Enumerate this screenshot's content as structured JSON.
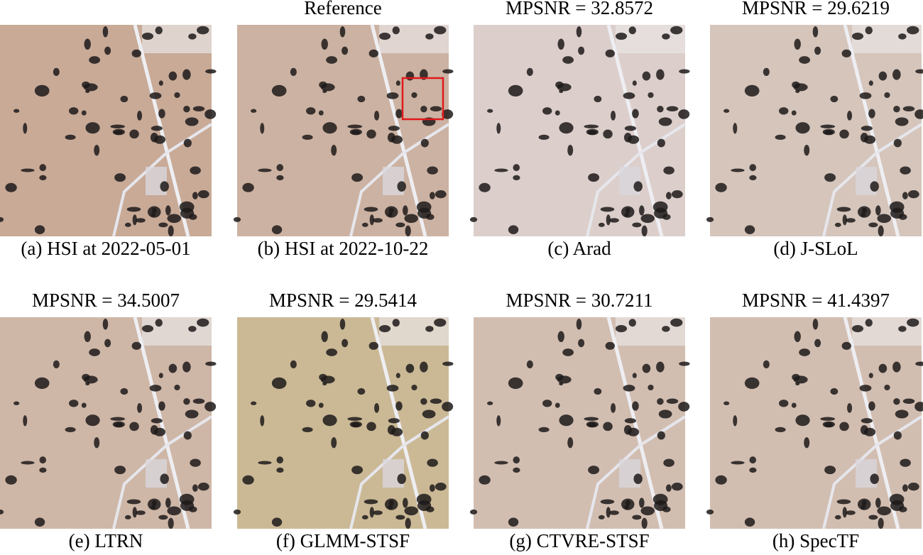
{
  "panels": [
    {
      "caption": "(a) HSI at 2022-05-01"
    },
    {
      "title": "Reference",
      "caption": "(b) HSI at 2022-10-22"
    },
    {
      "title": "MPSNR = 32.8572",
      "caption": "(c) Arad"
    },
    {
      "title": "MPSNR = 29.6219",
      "caption": "(d) J-SLoL"
    },
    {
      "title": "MPSNR = 34.5007",
      "caption": "(e) LTRN"
    },
    {
      "title": "MPSNR = 29.5414",
      "caption": "(f) GLMM-STSF"
    },
    {
      "title": "MPSNR = 30.7211",
      "caption": "(g) CTVRE-STSF"
    },
    {
      "title": "MPSNR = 41.4397",
      "caption": "(h) SpecTF"
    }
  ]
}
